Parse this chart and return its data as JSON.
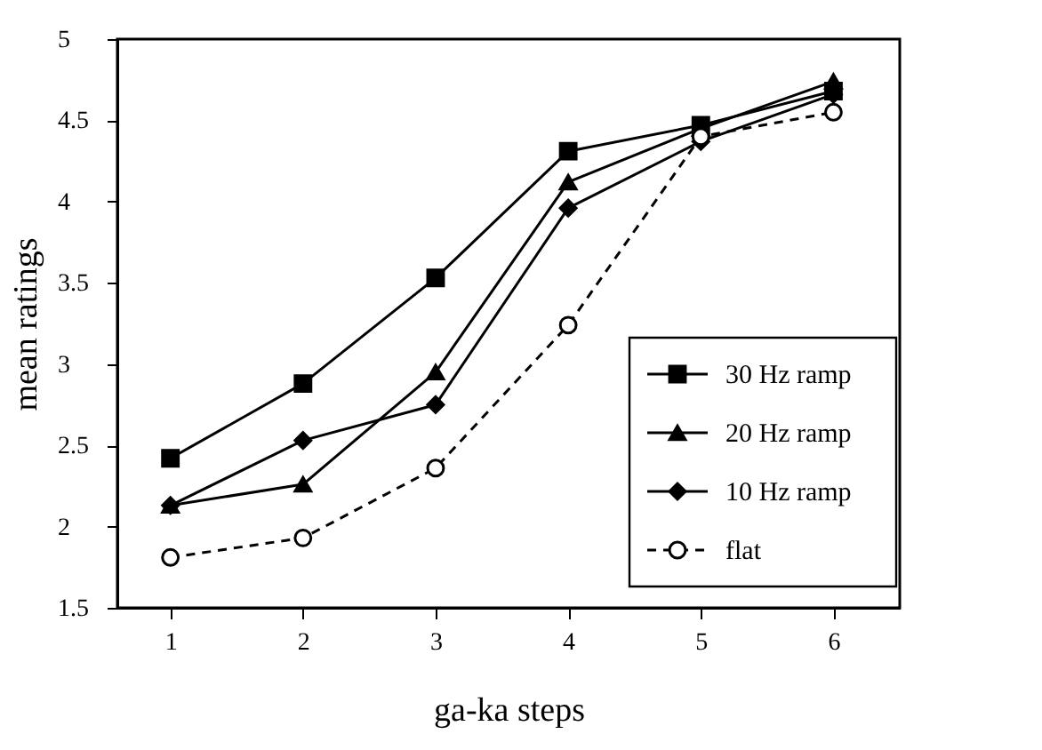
{
  "chart_data": {
    "type": "line",
    "xlabel": "ga-ka steps",
    "ylabel": "mean ratings",
    "x": [
      1,
      2,
      3,
      4,
      5,
      6
    ],
    "series": [
      {
        "name": "30 Hz ramp",
        "color": "#000000",
        "marker": "square",
        "line_style": "solid",
        "values": [
          2.42,
          2.88,
          3.53,
          4.31,
          4.47,
          4.68
        ]
      },
      {
        "name": "20 Hz ramp",
        "color": "#000000",
        "marker": "triangle",
        "line_style": "solid",
        "values": [
          2.13,
          2.26,
          2.95,
          4.12,
          4.45,
          4.74
        ]
      },
      {
        "name": "10 Hz ramp",
        "color": "#000000",
        "marker": "diamond",
        "line_style": "solid",
        "values": [
          2.13,
          2.53,
          2.75,
          3.96,
          4.37,
          4.66
        ]
      },
      {
        "name": "flat",
        "color": "#000000",
        "marker": "circle",
        "line_style": "dashed",
        "values": [
          1.81,
          1.93,
          2.36,
          3.24,
          4.4,
          4.55
        ]
      }
    ],
    "xlim": [
      0.6,
      6.5
    ],
    "xticks": [
      1,
      2,
      3,
      4,
      5,
      6
    ],
    "ylim": [
      1.5,
      5
    ],
    "yticks": [
      1.5,
      2,
      2.5,
      3,
      3.5,
      4,
      4.5,
      5
    ],
    "grid": false,
    "legend": "bottom right"
  }
}
